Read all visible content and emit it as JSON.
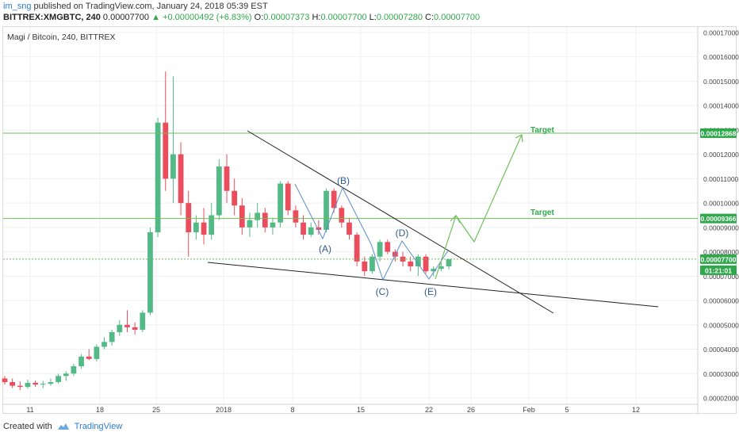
{
  "header": {
    "username": "im_sng",
    "published": "published on TradingView.com, January 24, 2018 05:39 EST"
  },
  "quote": {
    "symbol": "BITTREX:XMGBTC, 240",
    "last": "0.00007700",
    "change": "+0.00000492 (+6.83%)",
    "o_label": "O:",
    "o_value": "0.00007373",
    "h_label": "H:",
    "h_value": "0.00007700",
    "l_label": "L:",
    "l_value": "0.00007280",
    "c_label": "C:",
    "c_value": "0.00007700"
  },
  "footer": {
    "created_with": "Created with",
    "brand": "TradingView"
  },
  "colors": {
    "up": "#53b987",
    "down": "#eb4d5c",
    "wick": "#8a8a8a",
    "target_line": "#6fbf5b",
    "trendline": "#222222",
    "wave": "#5b8fc9",
    "label_bg": "#2ea84a"
  },
  "chart_data": {
    "type": "candlestick",
    "title": "Magi / Bitcoin, 240, BITTREX",
    "ylim": [
      1.85e-05,
      1.73e-05
    ],
    "y_ticks": [
      "0.00017000",
      "0.00016000",
      "0.00015000",
      "0.00014000",
      "0.00013000",
      "0.00012000",
      "0.00011000",
      "0.00010000",
      "0.00009000",
      "0.00008000",
      "0.00007000",
      "0.00006000",
      "0.00005000",
      "0.00004000",
      "0.00003000",
      "0.00002000"
    ],
    "x_ticks": [
      "11",
      "18",
      "25",
      "2018",
      "8",
      "15",
      "22",
      "26",
      "Feb",
      "5",
      "12"
    ],
    "price_labels": [
      {
        "value": "0.00012868",
        "kind": "target"
      },
      {
        "value": "0.00009366",
        "kind": "target"
      },
      {
        "value": "0.00007700",
        "kind": "last"
      },
      {
        "value": "01:21:01",
        "kind": "countdown"
      }
    ],
    "annotations": {
      "wave_labels": [
        "(A)",
        "(B)",
        "(C)",
        "(D)",
        "(E)"
      ],
      "target_labels": [
        "Target",
        "Target"
      ]
    },
    "ohlc_approx": [
      [
        2.8e-05,
        2.9e-05,
        2.55e-05,
        2.65e-05
      ],
      [
        2.65e-05,
        2.8e-05,
        2.4e-05,
        2.5e-05
      ],
      [
        2.5e-05,
        2.68e-05,
        2.32e-05,
        2.45e-05
      ],
      [
        2.45e-05,
        2.75e-05,
        2.38e-05,
        2.62e-05
      ],
      [
        2.62e-05,
        2.72e-05,
        2.45e-05,
        2.55e-05
      ],
      [
        2.55e-05,
        2.7e-05,
        2.4e-05,
        2.58e-05
      ],
      [
        2.58e-05,
        2.8e-05,
        2.5e-05,
        2.65e-05
      ],
      [
        2.65e-05,
        3e-05,
        2.58e-05,
        2.9e-05
      ],
      [
        2.9e-05,
        3.1e-05,
        2.7e-05,
        3e-05
      ],
      [
        3e-05,
        3.4e-05,
        2.9e-05,
        3.3e-05
      ],
      [
        3.3e-05,
        3.8e-05,
        3.2e-05,
        3.7e-05
      ],
      [
        3.7e-05,
        4e-05,
        3.55e-05,
        3.6e-05
      ],
      [
        3.6e-05,
        4.2e-05,
        3.5e-05,
        4.1e-05
      ],
      [
        4.1e-05,
        4.5e-05,
        4e-05,
        4.3e-05
      ],
      [
        4.3e-05,
        4.8e-05,
        4.15e-05,
        4.7e-05
      ],
      [
        4.7e-05,
        5.2e-05,
        4.55e-05,
        5e-05
      ],
      [
        5e-05,
        5.6e-05,
        4.7e-05,
        4.9e-05
      ],
      [
        4.9e-05,
        5.1e-05,
        4.6e-05,
        4.8e-05
      ],
      [
        4.8e-05,
        5.6e-05,
        4.7e-05,
        5.5e-05
      ],
      [
        5.5e-05,
        9e-05,
        5.4e-05,
        8.8e-05
      ],
      [
        8.8e-05,
        0.000135,
        8.6e-05,
        0.000133
      ],
      [
        0.000133,
        0.000154,
        0.000105,
        0.00011
      ],
      [
        0.00011,
        0.000152,
        0.0001,
        0.00012
      ],
      [
        0.00012,
        0.000125,
        9.5e-05,
        0.0001
      ],
      [
        0.0001,
        0.000105,
        7.8e-05,
        8.8e-05
      ],
      [
        8.8e-05,
        9.5e-05,
        8.5e-05,
        9.2e-05
      ],
      [
        9.2e-05,
        9.8e-05,
        8.3e-05,
        8.7e-05
      ],
      [
        8.7e-05,
        0.0001,
        8.5e-05,
        9.5e-05
      ],
      [
        9.5e-05,
        0.000118,
        9.3e-05,
        0.000115
      ],
      [
        0.000115,
        0.00012,
        0.0001,
        0.000105
      ],
      [
        0.000105,
        0.00011,
        9.5e-05,
        9.9e-05
      ],
      [
        9.9e-05,
        0.000102,
        8.7e-05,
        9e-05
      ],
      [
        9e-05,
        9.6e-05,
        8.6e-05,
        9.3e-05
      ],
      [
        9.3e-05,
        0.0001,
        9e-05,
        9.6e-05
      ],
      [
        9.6e-05,
        9.8e-05,
        8.8e-05,
        9e-05
      ],
      [
        9e-05,
        9.4e-05,
        8.7e-05,
        9.2e-05
      ],
      [
        9.2e-05,
        0.000109,
        9e-05,
        0.000108
      ],
      [
        0.000108,
        0.000109,
        9.5e-05,
        9.7e-05
      ],
      [
        9.7e-05,
        9.9e-05,
        9e-05,
        9.2e-05
      ],
      [
        9.2e-05,
        9.5e-05,
        8.5e-05,
        8.7e-05
      ],
      [
        8.7e-05,
        9.2e-05,
        8.6e-05,
        9e-05
      ],
      [
        9e-05,
        9.3e-05,
        8.7e-05,
        8.9e-05
      ],
      [
        8.9e-05,
        0.000106,
        8.8e-05,
        0.000105
      ],
      [
        0.000105,
        0.000106,
        9.6e-05,
        9.8e-05
      ],
      [
        9.8e-05,
        9.9e-05,
        9e-05,
        9.2e-05
      ],
      [
        9.2e-05,
        9.4e-05,
        8.5e-05,
        8.7e-05
      ],
      [
        8.7e-05,
        8.8e-05,
        7.4e-05,
        7.6e-05
      ],
      [
        7.6e-05,
        7.8e-05,
        7e-05,
        7.2e-05
      ],
      [
        7.2e-05,
        7.9e-05,
        7.1e-05,
        7.8e-05
      ],
      [
        7.8e-05,
        8.5e-05,
        7.6e-05,
        8.4e-05
      ],
      [
        8.4e-05,
        8.5e-05,
        7.9e-05,
        8e-05
      ],
      [
        8e-05,
        8.1e-05,
        7.6e-05,
        7.8e-05
      ],
      [
        7.8e-05,
        8e-05,
        7.4e-05,
        7.6e-05
      ],
      [
        7.6e-05,
        7.8e-05,
        7.2e-05,
        7.4e-05
      ],
      [
        7.4e-05,
        7.9e-05,
        7e-05,
        7.8e-05
      ],
      [
        7.8e-05,
        7.9e-05,
        7.1e-05,
        7.2e-05
      ],
      [
        7.2e-05,
        7.4e-05,
        7e-05,
        7.3e-05
      ],
      [
        7.3e-05,
        7.6e-05,
        7.2e-05,
        7.4e-05
      ],
      [
        7.4e-05,
        7.7e-05,
        7.28e-05,
        7.7e-05
      ]
    ]
  }
}
